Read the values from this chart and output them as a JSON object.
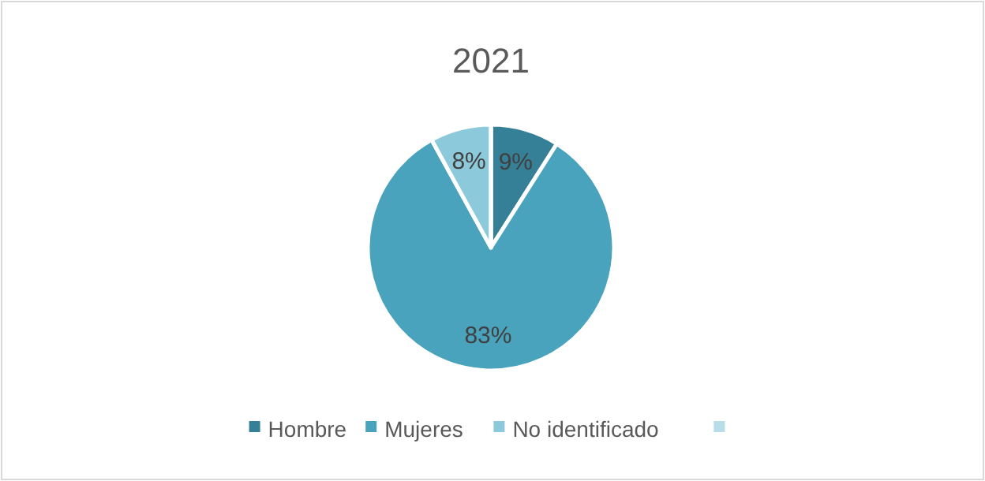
{
  "chart_data": {
    "type": "pie",
    "title": "2021",
    "categories": [
      "Hombre",
      "Mujeres",
      "No identificado",
      null
    ],
    "values": [
      9,
      83,
      8,
      0
    ],
    "value_labels": [
      "9%",
      "83%",
      "8%",
      null
    ],
    "colors": [
      "#357f97",
      "#4aa3bc",
      "#8ccadb",
      "#b6dde8"
    ],
    "legend": "bottom"
  }
}
